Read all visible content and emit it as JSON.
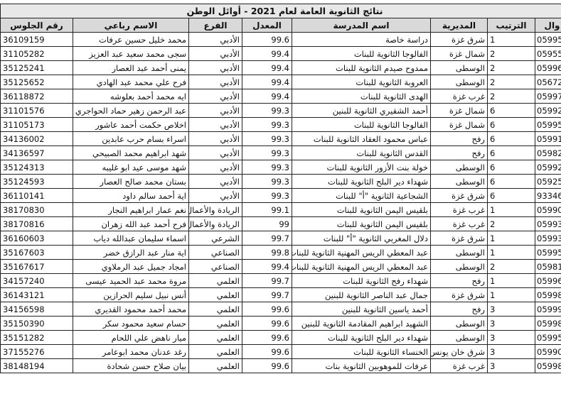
{
  "table": {
    "title": "نتائج الثانوية العامة لعام 2021 - أوائل الوطن",
    "headers": [
      "رقم الجلوس",
      "الاسم رباعي",
      "الفرع",
      "المعدل",
      "اسم المدرسة",
      "المديرية",
      "الترتيب",
      "وال"
    ],
    "rows": [
      [
        36109159,
        "محمد خليل حسين عرفات",
        "الأدبي",
        99.6,
        "دراسة خاصة",
        "شرق غزة",
        1,
        "05995"
      ],
      [
        31105282,
        "سجى محمد سعيد عبد العزيز",
        "الأدبي",
        99.4,
        "الفالوجا الثانوية للبنات",
        "شمال غزة",
        2,
        "05955"
      ],
      [
        35125241,
        "يمنى أحمد عبد العصار",
        "الأدبي",
        99.4,
        "ممدوح صيدم الثانوية للبنات",
        "الوسطى",
        2,
        "05996"
      ],
      [
        35125652,
        "فرح علي محمد عبد الهادي",
        "الأدبي",
        99.4,
        "العروبة الثانوية للبنات",
        "الوسطى",
        2,
        "05672"
      ],
      [
        36118872,
        "ايه محمد أحمد بعلوشه",
        "الأدبي",
        99.4,
        "الهدى الثانوية للبنات",
        "غرب غزة",
        2,
        "05997"
      ],
      [
        31101576,
        "عبد الرحمن زهير حماد الحواجري",
        "الأدبي",
        99.3,
        "أحمد الشقيري الثانوية للبنين",
        "شمال غزة",
        6,
        "05992"
      ],
      [
        31105173,
        "اخلاص حكمت أحمد عاشور",
        "الأدبي",
        99.3,
        "الفالوجا الثانوية للبنات",
        "شمال غزة",
        6,
        "05995"
      ],
      [
        34136002,
        "اسراء بسام حرب عابدين",
        "الأدبي",
        99.3,
        "عباس محمود العقاد الثانوية للبنات",
        "رفح",
        6,
        "05991"
      ],
      [
        34136597,
        "شهد ابراهيم محمد الصبيحي",
        "الأدبي",
        99.3,
        "القدس الثانوية للبنات",
        "رفح",
        6,
        "05982"
      ],
      [
        35124313,
        "شهد موسى عيد ابو غليبه",
        "الأدبي",
        99.3,
        "خولة بنت الأزور الثانوية للبنات",
        "الوسطى",
        6,
        "05992"
      ],
      [
        35124593,
        "بستان محمد صالح العصار",
        "الأدبي",
        99.3,
        "شهداء دير البلح الثانوية للبنات",
        "الوسطى",
        6,
        "05925"
      ],
      [
        36110141,
        "اية أحمد سالم داود",
        "الأدبي",
        99.3,
        "الشجاعية الثانوية \"أ\" للبنات",
        "شرق غزة",
        6,
        "93346"
      ],
      [
        38170830,
        "نغم عمار ابراهيم النجار",
        "الريادة والأعمال",
        99.1,
        "بلقيس اليمن الثانوية للبنات",
        "غرب غزة",
        1,
        "05990"
      ],
      [
        38170816,
        "فرح أحمد عبد الله زهران",
        "الريادة والأعمال",
        99,
        "بلقيس اليمن الثانوية للبنات",
        "غرب غزة",
        2,
        "05993"
      ],
      [
        36160603,
        "اسماء سليمان عبدالله دياب",
        "الشرعي",
        99.7,
        "دلال المغربي الثانوية \"أ\" للبنات",
        "شرق غزة",
        1,
        "05993"
      ],
      [
        35167603,
        "اية منار عبد الرازق خضر",
        "الصناعي",
        99.8,
        "عبد المعطي الريس المهنية الثانوية للبنات",
        "الوسطى",
        1,
        "05995"
      ],
      [
        35167617,
        "امجاد جميل عبد الرملاوي",
        "الصناعي",
        99.4,
        "عبد المعطي الريس المهنية الثانوية للبنات",
        "الوسطى",
        2,
        "05981"
      ],
      [
        34157240,
        "مروة محمد عبد الحميد عيسى",
        "العلمي",
        99.7,
        "شهداء رفح الثانوية للبنات",
        "رفح",
        1,
        "05996"
      ],
      [
        36143121,
        "أنس نبيل سليم الحرازين",
        "العلمي",
        99.7,
        "جمال عبد الناصر الثانوية للبنين",
        "شرق غزة",
        1,
        "05998"
      ],
      [
        34156598,
        "محمد أحمد محمود القديري",
        "العلمي",
        99.6,
        "أحمد ياسين الثانوية للبنين",
        "رفح",
        3,
        "05999"
      ],
      [
        35150390,
        "حسام سعيد محمود سكر",
        "العلمي",
        99.6,
        "الشهيد ابراهيم المقادمة الثانوية للبنين",
        "الوسطى",
        3,
        "05998"
      ],
      [
        35151282,
        "ميار ناهض علي اللحام",
        "العلمي",
        99.6,
        "شهداء دير البلح الثانوية للبنات",
        "الوسطى",
        3,
        "05995"
      ],
      [
        37155276,
        "رغد عدنان محمد ابوعامر",
        "العلمي",
        99.6,
        "الخنساء الثانوية للبنات",
        "شرق خان يونس",
        3,
        "05990"
      ],
      [
        38148194,
        "بيان صلاح حسن شحادة",
        "العلمي",
        99.6,
        "عرفات للموهوبين الثانوية بنات",
        "غرب غزة",
        3,
        "05998"
      ]
    ]
  }
}
